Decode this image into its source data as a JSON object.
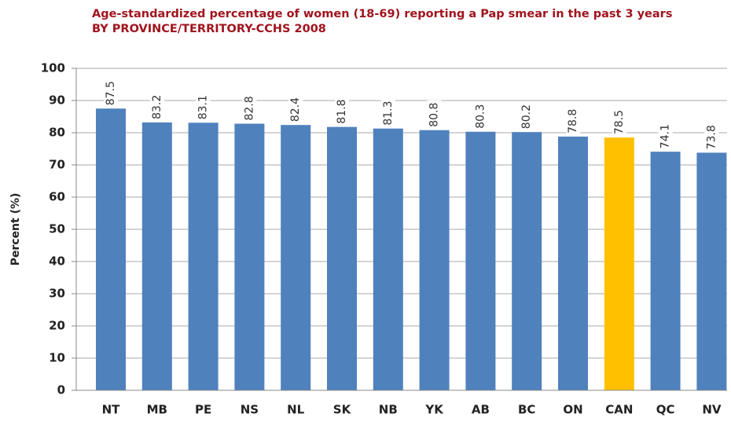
{
  "chart_data": {
    "type": "bar",
    "title": "Age-standardized percentage of women (18-69) reporting a Pap smear in the past 3 years",
    "subtitle": "BY PROVINCE/TERRITORY-CCHS 2008",
    "y_label": "Percent (%)",
    "categories": [
      "NT",
      "MB",
      "PE",
      "NS",
      "NL",
      "SK",
      "NB",
      "YK",
      "AB",
      "BC",
      "ON",
      "CAN",
      "QC",
      "NV"
    ],
    "values": [
      87.5,
      83.2,
      83.1,
      82.8,
      82.4,
      81.8,
      81.3,
      80.8,
      80.3,
      80.2,
      78.8,
      78.5,
      74.1,
      73.8
    ],
    "colors": [
      "#4f81bd",
      "#4f81bd",
      "#4f81bd",
      "#4f81bd",
      "#4f81bd",
      "#4f81bd",
      "#4f81bd",
      "#4f81bd",
      "#4f81bd",
      "#4f81bd",
      "#4f81bd",
      "#ffc000",
      "#4f81bd",
      "#4f81bd"
    ],
    "ylim": [
      0,
      100
    ],
    "yticks": [
      0,
      10,
      20,
      30,
      40,
      50,
      60,
      70,
      80,
      90,
      100
    ],
    "grid": true
  }
}
